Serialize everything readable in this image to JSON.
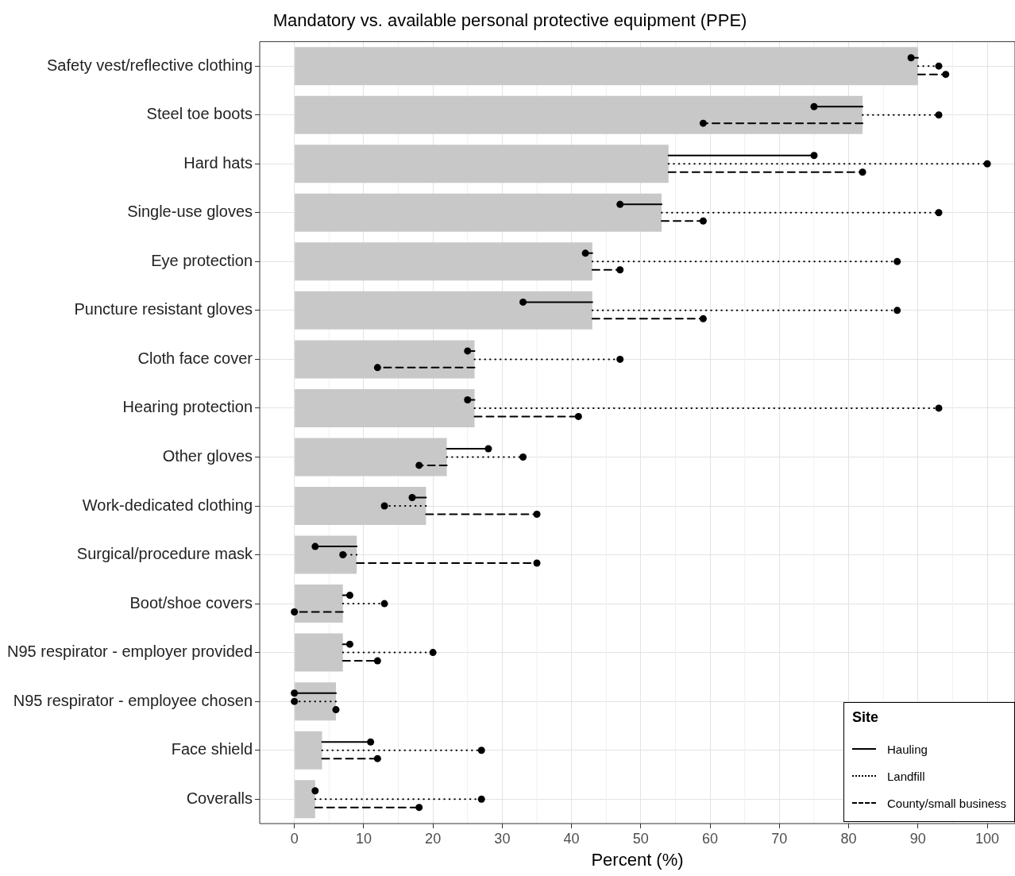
{
  "chart_data": {
    "type": "bar",
    "orientation": "horizontal",
    "title": "Mandatory vs. available personal protective equipment (PPE)",
    "xlabel": "Percent (%)",
    "legend_title": "Site",
    "legend": "bottom right",
    "grid": true,
    "marker": "circle",
    "categories": [
      "Safety vest/reflective clothing",
      "Steel toe boots",
      "Hard hats",
      "Single-use gloves",
      "Eye protection",
      "Puncture resistant gloves",
      "Cloth face cover",
      "Hearing protection",
      "Other gloves",
      "Work-dedicated clothing",
      "Surgical/procedure mask",
      "Boot/shoe covers",
      "N95 respirator - employer provided",
      "N95 respirator - employee chosen",
      "Face shield",
      "Coveralls"
    ],
    "xlim": [
      -5,
      104
    ],
    "xticks": [
      0,
      10,
      20,
      30,
      40,
      50,
      60,
      70,
      80,
      90,
      100
    ],
    "series": [
      {
        "type": "bar",
        "color": "#c8c8c8",
        "values": [
          90,
          82,
          54,
          53,
          43,
          43,
          26,
          26,
          22,
          19,
          9,
          7,
          7,
          6,
          4,
          3
        ]
      },
      {
        "name": "Hauling",
        "type": "scatter",
        "line_style": "solid",
        "color": "#000000",
        "values": [
          89,
          75,
          75,
          47,
          42,
          33,
          25,
          25,
          28,
          17,
          3,
          8,
          8,
          0,
          11,
          3
        ],
        "errors": [
          [
            89,
            90
          ],
          [
            75,
            82
          ],
          [
            54,
            75
          ],
          [
            47,
            53
          ],
          [
            42,
            43
          ],
          [
            33,
            43
          ],
          [
            25,
            26
          ],
          [
            25,
            26
          ],
          [
            22,
            28
          ],
          [
            17,
            19
          ],
          [
            3,
            9
          ],
          [
            7,
            8
          ],
          [
            7,
            8
          ],
          [
            0,
            6
          ],
          [
            4,
            11
          ],
          [
            3,
            3
          ]
        ]
      },
      {
        "name": "Landfill",
        "type": "scatter",
        "line_style": "dotted",
        "color": "#000000",
        "values": [
          93,
          93,
          100,
          93,
          87,
          87,
          47,
          93,
          33,
          13,
          7,
          13,
          20,
          0,
          27,
          27
        ],
        "errors": [
          [
            90,
            93
          ],
          [
            82,
            93
          ],
          [
            54,
            100
          ],
          [
            53,
            93
          ],
          [
            43,
            87
          ],
          [
            43,
            87
          ],
          [
            26,
            47
          ],
          [
            26,
            93
          ],
          [
            22,
            33
          ],
          [
            13,
            19
          ],
          [
            7,
            9
          ],
          [
            7,
            13
          ],
          [
            7,
            20
          ],
          [
            0,
            6
          ],
          [
            4,
            27
          ],
          [
            3,
            27
          ]
        ]
      },
      {
        "name": "County/small business",
        "type": "scatter",
        "line_style": "dashed",
        "color": "#000000",
        "values": [
          94,
          59,
          82,
          59,
          47,
          59,
          12,
          41,
          18,
          35,
          35,
          0,
          12,
          6,
          12,
          18
        ],
        "errors": [
          [
            90,
            94
          ],
          [
            59,
            82
          ],
          [
            54,
            82
          ],
          [
            53,
            59
          ],
          [
            43,
            47
          ],
          [
            43,
            59
          ],
          [
            12,
            26
          ],
          [
            26,
            41
          ],
          [
            18,
            22
          ],
          [
            19,
            35
          ],
          [
            9,
            35
          ],
          [
            0,
            7
          ],
          [
            7,
            12
          ],
          [
            6,
            6
          ],
          [
            4,
            12
          ],
          [
            3,
            18
          ]
        ]
      }
    ]
  }
}
